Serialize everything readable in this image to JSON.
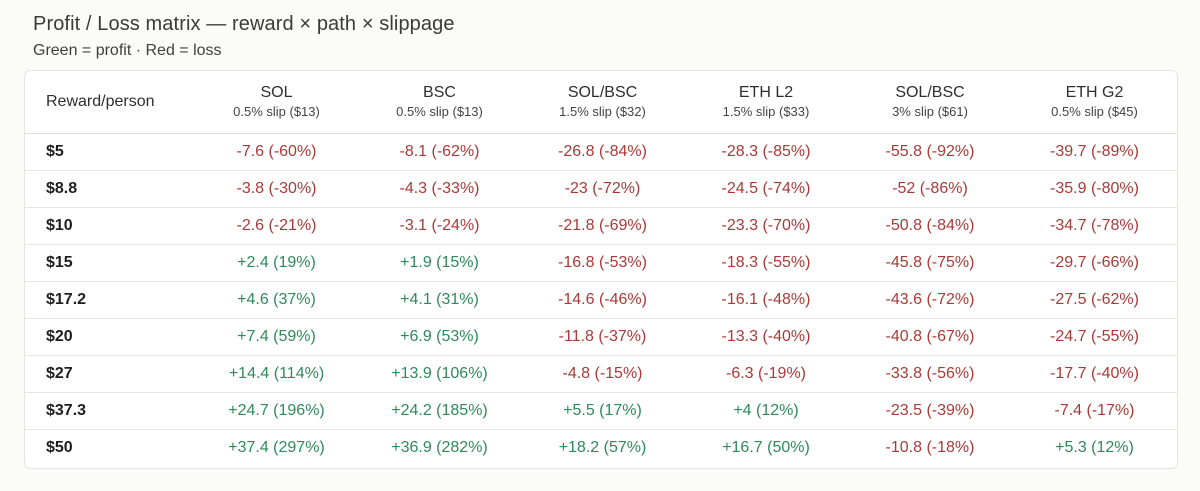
{
  "title": "Profit / Loss matrix — reward × path × slippage",
  "subtitle": "Green = profit · Red = loss",
  "colors": {
    "profit": "#2e8a5a",
    "loss": "#a83a37"
  },
  "table": {
    "corner_label": "Reward/person",
    "columns": [
      {
        "name": "SOL",
        "sub": "0.5% slip ($13)"
      },
      {
        "name": "BSC",
        "sub": "0.5% slip ($13)"
      },
      {
        "name": "SOL/BSC",
        "sub": "1.5% slip ($32)"
      },
      {
        "name": "ETH L2",
        "sub": "1.5% slip ($33)"
      },
      {
        "name": "SOL/BSC",
        "sub": "3% slip ($61)"
      },
      {
        "name": "ETH G2",
        "sub": "0.5% slip ($45)"
      }
    ],
    "rows": [
      {
        "reward": "$5",
        "cells": [
          "-7.6 (-60%)",
          "-8.1 (-62%)",
          "-26.8 (-84%)",
          "-28.3 (-85%)",
          "-55.8 (-92%)",
          "-39.7 (-89%)"
        ]
      },
      {
        "reward": "$8.8",
        "cells": [
          "-3.8 (-30%)",
          "-4.3 (-33%)",
          "-23 (-72%)",
          "-24.5 (-74%)",
          "-52 (-86%)",
          "-35.9 (-80%)"
        ]
      },
      {
        "reward": "$10",
        "cells": [
          "-2.6 (-21%)",
          "-3.1 (-24%)",
          "-21.8 (-69%)",
          "-23.3 (-70%)",
          "-50.8 (-84%)",
          "-34.7 (-78%)"
        ]
      },
      {
        "reward": "$15",
        "cells": [
          "+2.4 (19%)",
          "+1.9 (15%)",
          "-16.8 (-53%)",
          "-18.3 (-55%)",
          "-45.8 (-75%)",
          "-29.7 (-66%)"
        ]
      },
      {
        "reward": "$17.2",
        "cells": [
          "+4.6 (37%)",
          "+4.1 (31%)",
          "-14.6 (-46%)",
          "-16.1 (-48%)",
          "-43.6 (-72%)",
          "-27.5 (-62%)"
        ]
      },
      {
        "reward": "$20",
        "cells": [
          "+7.4 (59%)",
          "+6.9 (53%)",
          "-11.8 (-37%)",
          "-13.3 (-40%)",
          "-40.8 (-67%)",
          "-24.7 (-55%)"
        ]
      },
      {
        "reward": "$27",
        "cells": [
          "+14.4 (114%)",
          "+13.9 (106%)",
          "-4.8 (-15%)",
          "-6.3 (-19%)",
          "-33.8 (-56%)",
          "-17.7 (-40%)"
        ]
      },
      {
        "reward": "$37.3",
        "cells": [
          "+24.7 (196%)",
          "+24.2 (185%)",
          "+5.5 (17%)",
          "+4 (12%)",
          "-23.5 (-39%)",
          "-7.4 (-17%)"
        ]
      },
      {
        "reward": "$50",
        "cells": [
          "+37.4 (297%)",
          "+36.9 (282%)",
          "+18.2 (57%)",
          "+16.7 (50%)",
          "-10.8 (-18%)",
          "+5.3 (12%)"
        ]
      }
    ]
  }
}
